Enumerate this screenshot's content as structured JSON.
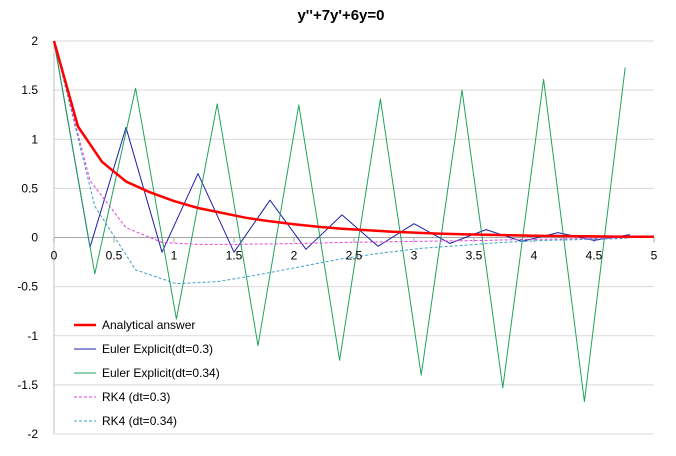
{
  "chart_data": {
    "type": "line",
    "title": "y''+7y'+6y=0",
    "xlabel": "",
    "ylabel": "",
    "xlim": [
      0,
      5
    ],
    "ylim": [
      -2,
      2
    ],
    "x_ticks": [
      "0",
      "0.5",
      "1",
      "1.5",
      "2",
      "2.5",
      "3",
      "3.5",
      "4",
      "4.5",
      "5"
    ],
    "y_ticks": [
      "2",
      "1.5",
      "1",
      "0.5",
      "0",
      "-0.5",
      "-1",
      "-1.5",
      "-2"
    ],
    "grid": "horizontal",
    "legend_position": "bottom-left",
    "series": [
      {
        "name": "Analytical answer",
        "color": "#ff0000",
        "style": "solid-thick",
        "x": [
          0,
          0.2,
          0.4,
          0.6,
          0.8,
          1.0,
          1.2,
          1.4,
          1.6,
          1.8,
          2.0,
          2.2,
          2.4,
          2.6,
          2.8,
          3.0,
          3.2,
          3.4,
          3.6,
          3.8,
          4.0,
          4.2,
          4.4,
          4.6,
          4.8,
          5.0
        ],
        "y": [
          2.0,
          1.13,
          0.77,
          0.57,
          0.46,
          0.37,
          0.3,
          0.25,
          0.2,
          0.165,
          0.135,
          0.11,
          0.09,
          0.075,
          0.06,
          0.05,
          0.04,
          0.034,
          0.027,
          0.022,
          0.018,
          0.015,
          0.012,
          0.01,
          0.008,
          0.007
        ]
      },
      {
        "name": "Euler Explicit(dt=0.3)",
        "color": "#1f1fa8",
        "style": "solid",
        "x": [
          0,
          0.3,
          0.6,
          0.9,
          1.2,
          1.5,
          1.8,
          2.1,
          2.4,
          2.7,
          3.0,
          3.3,
          3.6,
          3.9,
          4.2,
          4.5,
          4.8
        ],
        "y": [
          2.0,
          -0.1,
          1.12,
          -0.15,
          0.65,
          -0.15,
          0.38,
          -0.12,
          0.23,
          -0.09,
          0.14,
          -0.06,
          0.08,
          -0.04,
          0.05,
          -0.03,
          0.03
        ]
      },
      {
        "name": "Euler Explicit(dt=0.34)",
        "color": "#21a35a",
        "style": "solid",
        "x": [
          0,
          0.34,
          0.68,
          1.02,
          1.36,
          1.7,
          2.04,
          2.38,
          2.72,
          3.06,
          3.4,
          3.74,
          4.08,
          4.42,
          4.76
        ],
        "y": [
          2.0,
          -0.37,
          1.52,
          -0.83,
          1.36,
          -1.1,
          1.35,
          -1.25,
          1.41,
          -1.4,
          1.5,
          -1.53,
          1.61,
          -1.67,
          1.73
        ]
      },
      {
        "name": "RK4 (dt=0.3)",
        "color": "#e040e0",
        "style": "dashed",
        "x": [
          0,
          0.3,
          0.6,
          0.9,
          1.2,
          1.5,
          1.8,
          2.1,
          2.4,
          2.7,
          3.0,
          3.3,
          3.6,
          3.9,
          4.2,
          4.5,
          4.8
        ],
        "y": [
          2.0,
          0.58,
          0.1,
          -0.05,
          -0.07,
          -0.07,
          -0.065,
          -0.06,
          -0.05,
          -0.045,
          -0.04,
          -0.035,
          -0.03,
          -0.02,
          -0.015,
          -0.01,
          -0.005
        ]
      },
      {
        "name": "RK4 (dt=0.34)",
        "color": "#3fa0c8",
        "style": "dashed",
        "x": [
          0,
          0.34,
          0.68,
          1.02,
          1.36,
          1.7,
          2.04,
          2.38,
          2.72,
          3.06,
          3.4,
          3.74,
          4.08,
          4.42,
          4.76
        ],
        "y": [
          2.0,
          0.32,
          -0.33,
          -0.47,
          -0.45,
          -0.38,
          -0.3,
          -0.22,
          -0.16,
          -0.11,
          -0.08,
          -0.05,
          -0.03,
          -0.02,
          -0.01
        ]
      }
    ]
  }
}
